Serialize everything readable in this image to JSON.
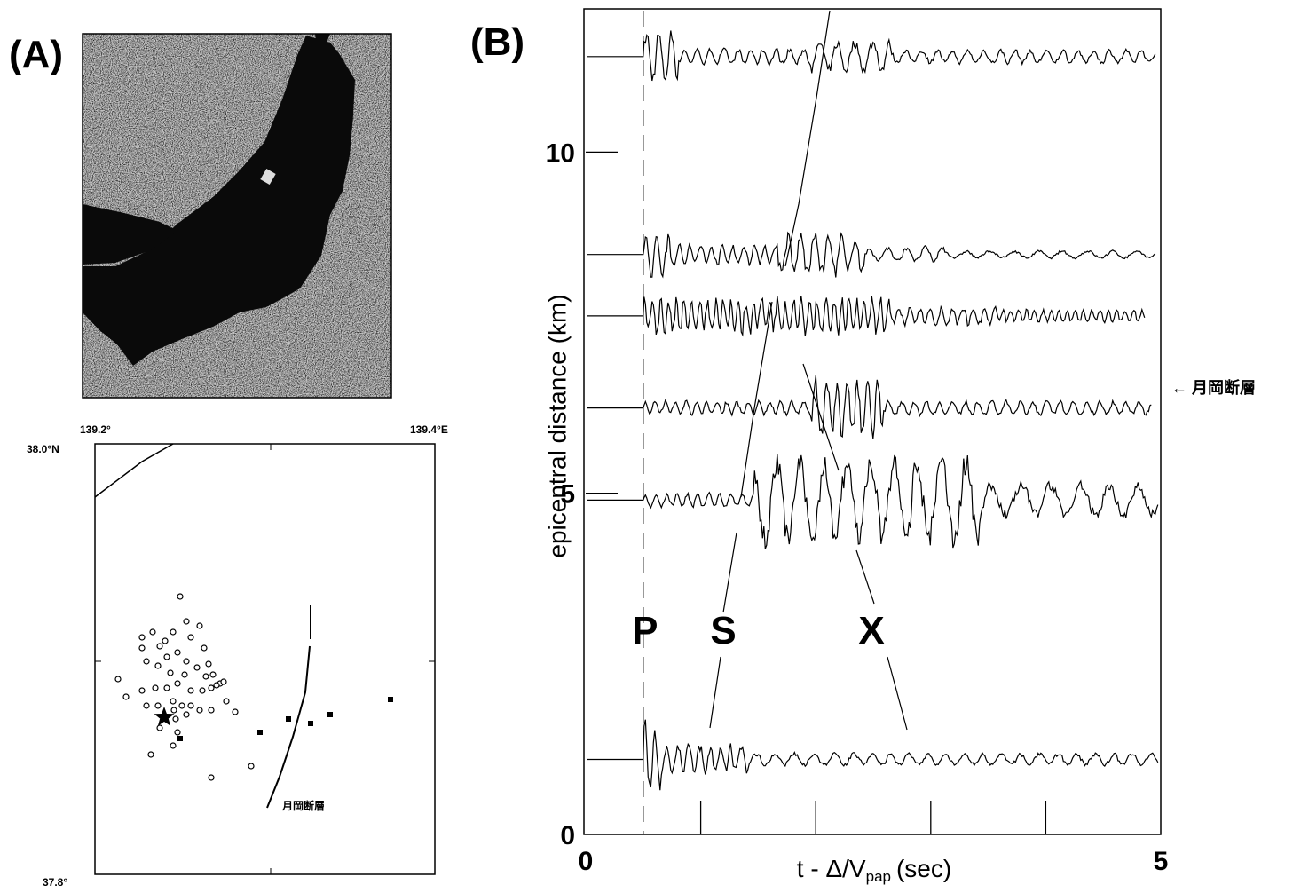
{
  "panel_a": {
    "label": "(A)",
    "lon_left": "139.2°",
    "lon_right": "139.4°E",
    "lat_top": "38.0°N",
    "lat_bottom": "37.8°",
    "fault_label": "月岡断層"
  },
  "panel_b": {
    "label": "(B)",
    "y_axis_label": "epicentral distance (km)",
    "x_axis_label": {
      "main": "t - Δ/V",
      "subscript": "pap",
      "unit": "(sec)"
    },
    "xlim": [
      0,
      5
    ],
    "xticks": [
      0,
      5
    ],
    "minor_xticks": [
      1,
      2,
      3,
      4
    ],
    "ylim": [
      0,
      12.1
    ],
    "yticks": [
      0,
      5,
      10
    ],
    "trace_onset": 0.5,
    "trace_distances": [
      11.4,
      8.5,
      7.6,
      6.25,
      4.9,
      1.1
    ],
    "phases": [
      "P",
      "S",
      "X"
    ],
    "fault_annotation": "← 月岡断層"
  }
}
